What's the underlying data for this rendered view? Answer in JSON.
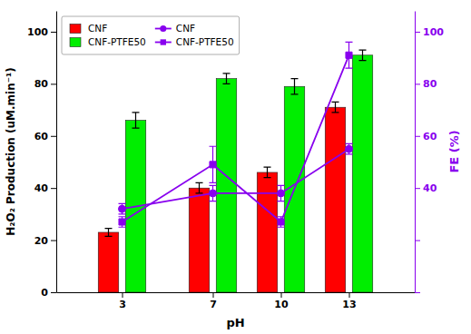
{
  "chart_data": {
    "type": "bar",
    "x": [
      3,
      7,
      10,
      13
    ],
    "xlim": [
      0.1,
      15.9
    ],
    "xticks": [
      3,
      7,
      10,
      13
    ],
    "xlabel": "pH",
    "ylabel": "H₂O₂ Production (uM.min⁻¹)",
    "y2label": "FE (%)",
    "ylim": [
      0,
      108
    ],
    "yticks": [
      0,
      20,
      40,
      60,
      80,
      100
    ],
    "y2lim": [
      0,
      108
    ],
    "y2ticks": [
      {
        "value": 0,
        "label": null
      },
      {
        "value": 20,
        "label": null
      },
      40,
      60,
      80,
      100
    ],
    "grid": false,
    "legend": "upper left",
    "series": [
      {
        "name": "CNF",
        "type": "bar",
        "color": "#ff0000",
        "values": [
          23,
          40,
          46,
          71
        ],
        "errors": [
          1.5,
          2,
          2,
          2
        ]
      },
      {
        "name": "CNF-PTFE50",
        "type": "bar",
        "color": "#00ee00",
        "values": [
          66,
          82,
          79,
          91
        ],
        "errors": [
          3,
          2,
          3,
          2
        ]
      },
      {
        "name": "CNF",
        "type": "line",
        "axis": "y2",
        "color": "#8800ee",
        "marker": "circle",
        "values": [
          32,
          38,
          38,
          55
        ],
        "errors": [
          2,
          3,
          3,
          2
        ]
      },
      {
        "name": "CNF-PTFE50",
        "type": "line",
        "axis": "y2",
        "color": "#8800ee",
        "marker": "square",
        "values": [
          27,
          49,
          27,
          91
        ],
        "errors": [
          2,
          7,
          2,
          5
        ]
      }
    ]
  }
}
